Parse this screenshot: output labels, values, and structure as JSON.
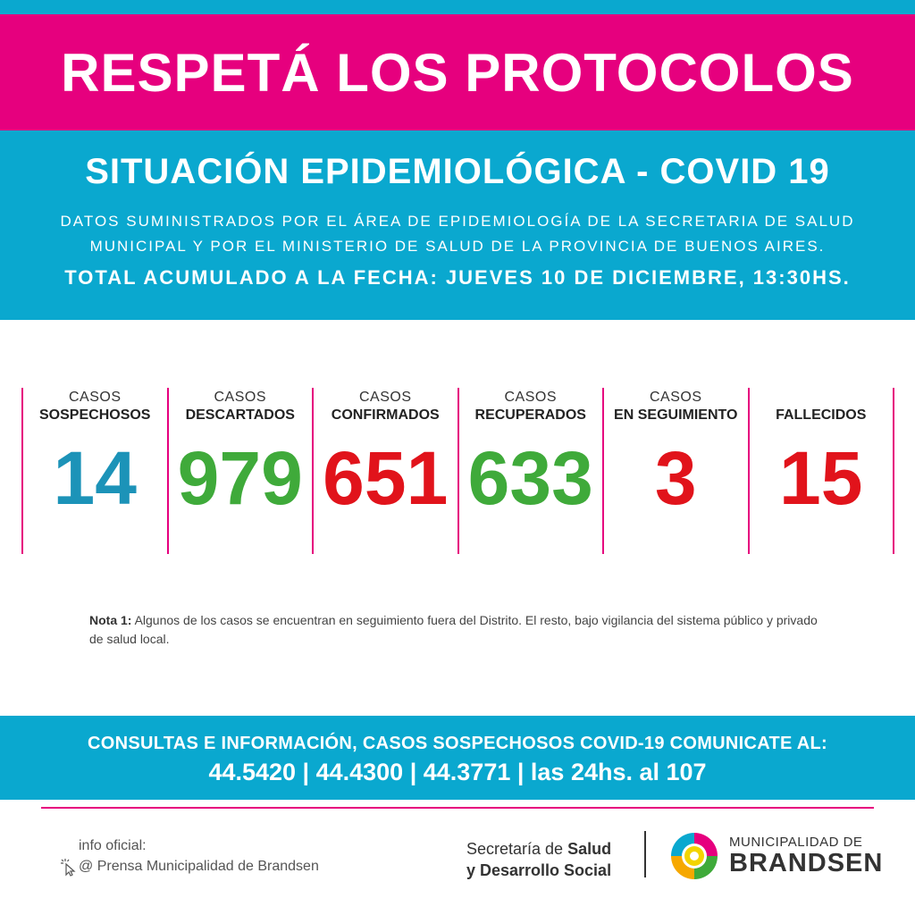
{
  "banner": {
    "title": "RESPETÁ LOS PROTOCOLOS"
  },
  "header": {
    "title": "SITUACIÓN EPIDEMIOLÓGICA - COVID 19",
    "source_line1": "DATOS SUMINISTRADOS POR EL ÁREA DE EPIDEMIOLOGÍA DE LA SECRETARIA DE SALUD",
    "source_line2": "MUNICIPAL Y POR EL MINISTERIO DE SALUD DE LA PROVINCIA DE BUENOS AIRES.",
    "date": "TOTAL ACUMULADO A LA FECHA: JUEVES 10 DE DICIEMBRE, 13:30HS."
  },
  "stats": [
    {
      "line1": "CASOS",
      "line2": "SOSPECHOSOS",
      "value": "14",
      "color": "#1c93b8"
    },
    {
      "line1": "CASOS",
      "line2": "DESCARTADOS",
      "value": "979",
      "color": "#3faa3a"
    },
    {
      "line1": "CASOS",
      "line2": "CONFIRMADOS",
      "value": "651",
      "color": "#e1131b"
    },
    {
      "line1": "CASOS",
      "line2": "RECUPERADOS",
      "value": "633",
      "color": "#3faa3a"
    },
    {
      "line1": "CASOS",
      "line2": "EN SEGUIMIENTO",
      "value": "3",
      "color": "#e1131b"
    },
    {
      "line1": "",
      "line2": "FALLECIDOS",
      "value": "15",
      "color": "#e1131b"
    }
  ],
  "note": {
    "label": "Nota 1:",
    "text": " Algunos de los casos se encuentran en seguimiento fuera del Distrito. El resto, bajo vigilancia del sistema público y privado de salud local."
  },
  "contact": {
    "line1": "CONSULTAS E INFORMACIÓN, CASOS SOSPECHOSOS COVID-19 COMUNICATE AL:",
    "line2": "44.5420 | 44.4300 | 44.3771 | las 24hs. al 107"
  },
  "footer": {
    "info_label": "info oficial:",
    "info_source": "@ Prensa Municipalidad de Brandsen",
    "secretaria_prefix": "Secretaría de ",
    "secretaria_bold1": "Salud",
    "secretaria_bold2": "y Desarrollo Social",
    "muni_line1": "MUNICIPALIDAD DE",
    "muni_line2": "BRANDSEN"
  },
  "colors": {
    "pink": "#e6007e",
    "cyan": "#0aa8cf"
  }
}
